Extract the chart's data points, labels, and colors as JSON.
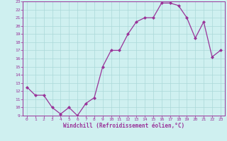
{
  "x": [
    0,
    1,
    2,
    3,
    4,
    5,
    6,
    7,
    8,
    9,
    10,
    11,
    12,
    13,
    14,
    15,
    16,
    17,
    18,
    19,
    20,
    21,
    22,
    23
  ],
  "y": [
    12.5,
    11.5,
    11.5,
    10.0,
    9.2,
    10.0,
    9.0,
    10.5,
    11.2,
    15.0,
    17.0,
    17.0,
    19.0,
    20.5,
    21.0,
    21.0,
    22.8,
    22.8,
    22.5,
    21.0,
    18.5,
    20.5,
    16.2,
    17.0
  ],
  "line_color": "#993399",
  "marker": "D",
  "marker_size": 2.0,
  "background_color": "#cff0f0",
  "grid_color": "#aad8d8",
  "xlabel": "Windchill (Refroidissement éolien,°C)",
  "xlabel_color": "#993399",
  "tick_color": "#993399",
  "ylim": [
    9,
    23
  ],
  "xlim": [
    -0.5,
    23.5
  ],
  "yticks": [
    9,
    10,
    11,
    12,
    13,
    14,
    15,
    16,
    17,
    18,
    19,
    20,
    21,
    22,
    23
  ],
  "xticks": [
    0,
    1,
    2,
    3,
    4,
    5,
    6,
    7,
    8,
    9,
    10,
    11,
    12,
    13,
    14,
    15,
    16,
    17,
    18,
    19,
    20,
    21,
    22,
    23
  ]
}
